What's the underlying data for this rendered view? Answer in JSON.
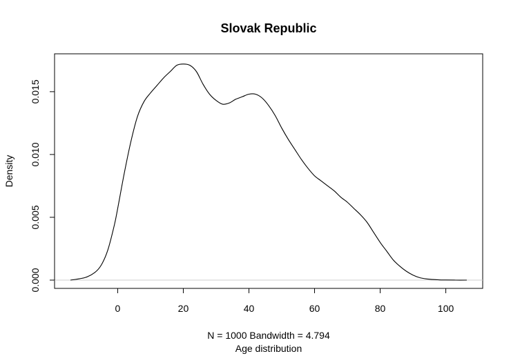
{
  "chart_data": {
    "type": "line",
    "title": "Slovak Republic",
    "xlabel": "Age distribution",
    "subtitle": "N = 1000   Bandwidth = 4.794",
    "ylabel": "Density",
    "xlim": [
      -14.4,
      106.4
    ],
    "ylim": [
      0,
      0.0173
    ],
    "xticks": [
      0,
      20,
      40,
      60,
      80,
      100
    ],
    "xtick_labels": [
      "0",
      "20",
      "40",
      "60",
      "80",
      "100"
    ],
    "yticks": [
      0,
      0.005,
      0.01,
      0.015
    ],
    "ytick_labels": [
      "0.000",
      "0.005",
      "0.010",
      "0.015"
    ],
    "grid": false,
    "series": [
      {
        "x": [
          -14.4,
          -10,
          -7,
          -5,
          -3,
          -1,
          0,
          2,
          4,
          6,
          8,
          10,
          12,
          14,
          16,
          18,
          20,
          22,
          24,
          26,
          28,
          30,
          32,
          34,
          36,
          38,
          40,
          42,
          44,
          46,
          48,
          50,
          52,
          54,
          56,
          58,
          60,
          62,
          64,
          66,
          68,
          70,
          72,
          74,
          76,
          78,
          80,
          82,
          84,
          86,
          88,
          90,
          92,
          94,
          96,
          98,
          100,
          103,
          106.4
        ],
        "y": [
          0.0,
          0.0002,
          0.0006,
          0.0012,
          0.0024,
          0.0044,
          0.0057,
          0.0085,
          0.011,
          0.013,
          0.0142,
          0.0149,
          0.0155,
          0.0161,
          0.0166,
          0.0171,
          0.0172,
          0.0171,
          0.0166,
          0.0156,
          0.0148,
          0.0143,
          0.014,
          0.0141,
          0.0144,
          0.0146,
          0.0148,
          0.0148,
          0.0145,
          0.0139,
          0.0131,
          0.0121,
          0.0112,
          0.0104,
          0.0096,
          0.0089,
          0.0083,
          0.0079,
          0.0075,
          0.0071,
          0.0066,
          0.0062,
          0.0057,
          0.0052,
          0.0046,
          0.0038,
          0.003,
          0.0023,
          0.0016,
          0.0011,
          0.0007,
          0.0004,
          0.0002,
          0.0001,
          5e-05,
          2e-05,
          1e-05,
          0.0,
          0.0
        ]
      }
    ]
  }
}
